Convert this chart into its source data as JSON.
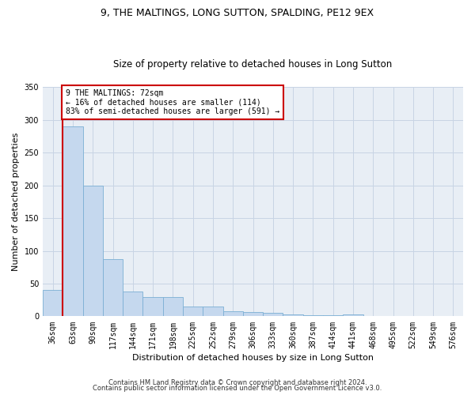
{
  "title": "9, THE MALTINGS, LONG SUTTON, SPALDING, PE12 9EX",
  "subtitle": "Size of property relative to detached houses in Long Sutton",
  "xlabel": "Distribution of detached houses by size in Long Sutton",
  "ylabel": "Number of detached properties",
  "categories": [
    "36sqm",
    "63sqm",
    "90sqm",
    "117sqm",
    "144sqm",
    "171sqm",
    "198sqm",
    "225sqm",
    "252sqm",
    "279sqm",
    "306sqm",
    "333sqm",
    "360sqm",
    "387sqm",
    "414sqm",
    "441sqm",
    "468sqm",
    "495sqm",
    "522sqm",
    "549sqm",
    "576sqm"
  ],
  "values": [
    40,
    290,
    200,
    88,
    38,
    30,
    30,
    15,
    15,
    8,
    6,
    5,
    3,
    2,
    2,
    3,
    0,
    0,
    0,
    0,
    0
  ],
  "bar_color": "#c5d8ee",
  "bar_edge_color": "#7bafd4",
  "marker_line_color": "#cc0000",
  "annotation_text": "9 THE MALTINGS: 72sqm\n← 16% of detached houses are smaller (114)\n83% of semi-detached houses are larger (591) →",
  "annotation_box_facecolor": "#ffffff",
  "annotation_box_edgecolor": "#cc0000",
  "ylim": [
    0,
    350
  ],
  "yticks": [
    0,
    50,
    100,
    150,
    200,
    250,
    300,
    350
  ],
  "background_color": "#ffffff",
  "plot_bg_color": "#e8eef5",
  "grid_color": "#c8d4e4",
  "footer_line1": "Contains HM Land Registry data © Crown copyright and database right 2024.",
  "footer_line2": "Contains public sector information licensed under the Open Government Licence v3.0.",
  "title_fontsize": 9,
  "subtitle_fontsize": 8.5,
  "ylabel_fontsize": 8,
  "xlabel_fontsize": 8,
  "tick_fontsize": 7,
  "footer_fontsize": 6
}
